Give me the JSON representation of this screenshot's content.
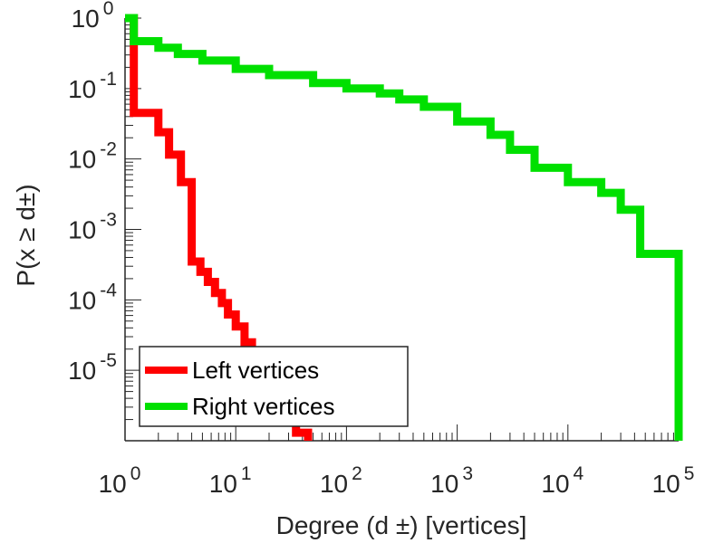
{
  "chart_data": {
    "type": "line",
    "xlabel": "Degree (d ±) [vertices]",
    "ylabel": "P(x ≥ d±)",
    "x_scale": "log",
    "y_scale": "log",
    "xlim": [
      1,
      100000
    ],
    "ylim": [
      1e-06,
      1
    ],
    "grid": false,
    "legend_position": "bottom-left",
    "x_tick_labels": [
      {
        "base": "10",
        "exp": "0"
      },
      {
        "base": "10",
        "exp": "1"
      },
      {
        "base": "10",
        "exp": "2"
      },
      {
        "base": "10",
        "exp": "3"
      },
      {
        "base": "10",
        "exp": "4"
      },
      {
        "base": "10",
        "exp": "5"
      }
    ],
    "y_tick_labels": [
      {
        "base": "10",
        "exp": "0"
      },
      {
        "base": "10",
        "exp": "-1"
      },
      {
        "base": "10",
        "exp": "-2"
      },
      {
        "base": "10",
        "exp": "-3"
      },
      {
        "base": "10",
        "exp": "-4"
      },
      {
        "base": "10",
        "exp": "-5"
      }
    ],
    "series": [
      {
        "name": "Left vertices",
        "color": "#ff0000",
        "x": [
          1,
          1.2,
          1.2,
          2,
          2,
          2.5,
          2.5,
          3.2,
          3.2,
          4,
          4,
          4.8,
          4.8,
          5.6,
          5.6,
          6.5,
          6.5,
          7.5,
          7.5,
          8.5,
          8.5,
          10,
          10,
          12,
          12,
          14,
          14,
          18,
          18,
          25,
          25,
          35,
          35,
          45,
          45
        ],
        "y": [
          1,
          1,
          0.045,
          0.045,
          0.024,
          0.024,
          0.0115,
          0.0115,
          0.0047,
          0.0047,
          0.00035,
          0.00035,
          0.00025,
          0.00025,
          0.00018,
          0.00018,
          0.000125,
          0.000125,
          9e-05,
          9e-05,
          6.2e-05,
          6.2e-05,
          4.2e-05,
          4.2e-05,
          2.5e-05,
          2.5e-05,
          1.7e-05,
          1.7e-05,
          1.1e-05,
          1.1e-05,
          6.5e-06,
          6.5e-06,
          1.3e-06,
          1.3e-06,
          1e-06
        ]
      },
      {
        "name": "Right vertices",
        "color": "#00e000",
        "x": [
          1,
          1.2,
          1.2,
          2,
          2,
          3,
          3,
          5,
          5,
          10,
          10,
          20,
          20,
          50,
          50,
          100,
          100,
          200,
          200,
          300,
          300,
          500,
          500,
          1000,
          1000,
          2000,
          2000,
          3000,
          3000,
          5000,
          5000,
          10000,
          10000,
          20000,
          20000,
          30000,
          30000,
          45000,
          45000,
          100000,
          100000
        ],
        "y": [
          1,
          1,
          0.47,
          0.47,
          0.38,
          0.38,
          0.31,
          0.31,
          0.25,
          0.25,
          0.19,
          0.19,
          0.155,
          0.155,
          0.12,
          0.12,
          0.1,
          0.1,
          0.085,
          0.085,
          0.07,
          0.07,
          0.055,
          0.055,
          0.034,
          0.034,
          0.022,
          0.022,
          0.0135,
          0.0135,
          0.0075,
          0.0075,
          0.0047,
          0.0047,
          0.0033,
          0.0033,
          0.0019,
          0.0019,
          0.00045,
          0.00045,
          1e-06
        ]
      }
    ]
  }
}
